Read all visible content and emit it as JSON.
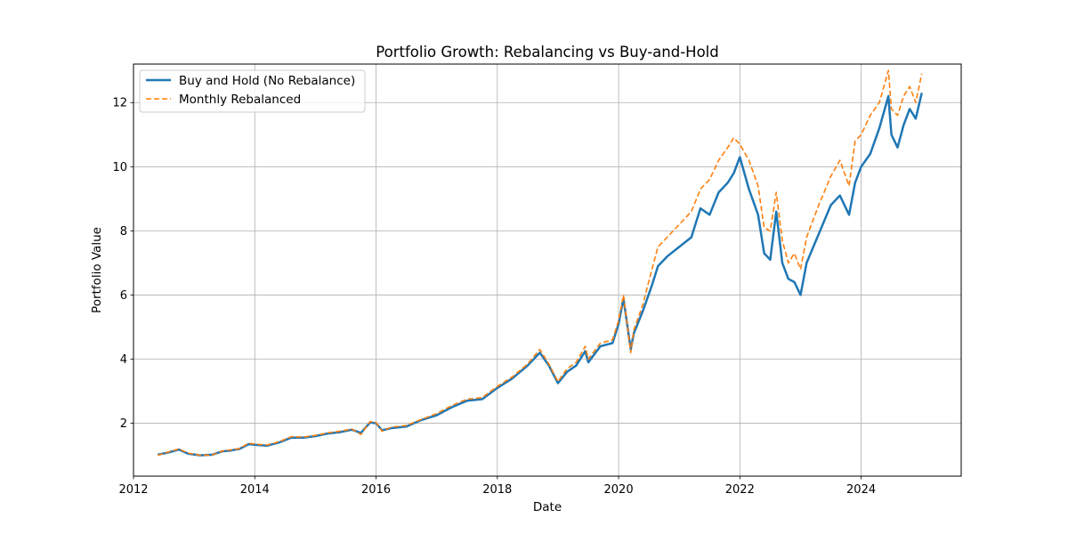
{
  "chart_data": {
    "type": "line",
    "title": "Portfolio Growth: Rebalancing vs Buy-and-Hold",
    "xlabel": "Date",
    "ylabel": "Portfolio Value",
    "xlim": [
      2012.0,
      2025.65
    ],
    "ylim": [
      0.35,
      13.2
    ],
    "grid": true,
    "legend_position": "top-left",
    "x_ticks": [
      2012,
      2014,
      2016,
      2018,
      2020,
      2022,
      2024
    ],
    "x_tick_labels": [
      "2012",
      "2014",
      "2016",
      "2018",
      "2020",
      "2022",
      "2024"
    ],
    "y_ticks": [
      2,
      4,
      6,
      8,
      10,
      12
    ],
    "y_tick_labels": [
      "2",
      "4",
      "6",
      "8",
      "10",
      "12"
    ],
    "x": [
      2012.4,
      2012.6,
      2012.75,
      2012.9,
      2013.1,
      2013.3,
      2013.45,
      2013.6,
      2013.75,
      2013.9,
      2014.0,
      2014.2,
      2014.4,
      2014.6,
      2014.8,
      2015.0,
      2015.2,
      2015.4,
      2015.6,
      2015.75,
      2015.9,
      2016.0,
      2016.1,
      2016.25,
      2016.5,
      2016.75,
      2017.0,
      2017.25,
      2017.5,
      2017.75,
      2018.0,
      2018.25,
      2018.5,
      2018.7,
      2018.85,
      2019.0,
      2019.15,
      2019.3,
      2019.45,
      2019.5,
      2019.7,
      2019.9,
      2020.0,
      2020.08,
      2020.2,
      2020.25,
      2020.4,
      2020.55,
      2020.65,
      2020.8,
      2021.0,
      2021.2,
      2021.35,
      2021.5,
      2021.65,
      2021.8,
      2021.9,
      2022.0,
      2022.15,
      2022.3,
      2022.4,
      2022.5,
      2022.6,
      2022.7,
      2022.8,
      2022.9,
      2023.0,
      2023.1,
      2023.3,
      2023.5,
      2023.65,
      2023.8,
      2023.9,
      2024.0,
      2024.15,
      2024.3,
      2024.45,
      2024.5,
      2024.6,
      2024.7,
      2024.8,
      2024.9,
      2025.0
    ],
    "series": [
      {
        "name": "Buy and Hold (No Rebalance)",
        "color": "#1f77b4",
        "style": "solid",
        "values": [
          1.02,
          1.1,
          1.18,
          1.05,
          1.0,
          1.02,
          1.12,
          1.15,
          1.2,
          1.35,
          1.33,
          1.3,
          1.4,
          1.55,
          1.55,
          1.6,
          1.68,
          1.72,
          1.8,
          1.7,
          2.02,
          2.0,
          1.78,
          1.85,
          1.9,
          2.1,
          2.25,
          2.5,
          2.7,
          2.75,
          3.1,
          3.4,
          3.8,
          4.2,
          3.8,
          3.25,
          3.6,
          3.8,
          4.25,
          3.9,
          4.4,
          4.5,
          5.1,
          5.9,
          4.3,
          4.8,
          5.5,
          6.3,
          6.9,
          7.2,
          7.5,
          7.8,
          8.7,
          8.5,
          9.2,
          9.5,
          9.8,
          10.3,
          9.3,
          8.5,
          7.3,
          7.1,
          8.6,
          7.0,
          6.5,
          6.4,
          6.0,
          7.0,
          7.9,
          8.8,
          9.1,
          8.5,
          9.5,
          10.0,
          10.4,
          11.2,
          12.2,
          11.0,
          10.6,
          11.3,
          11.8,
          11.5,
          12.3
        ]
      },
      {
        "name": "Monthly Rebalanced",
        "color": "#ff7f0e",
        "style": "dashed",
        "values": [
          1.0,
          1.12,
          1.2,
          1.07,
          1.0,
          1.01,
          1.13,
          1.17,
          1.21,
          1.38,
          1.35,
          1.32,
          1.42,
          1.58,
          1.57,
          1.62,
          1.7,
          1.75,
          1.82,
          1.65,
          2.05,
          2.02,
          1.75,
          1.88,
          1.93,
          2.12,
          2.3,
          2.55,
          2.75,
          2.8,
          3.15,
          3.45,
          3.85,
          4.3,
          3.85,
          3.3,
          3.7,
          3.9,
          4.4,
          4.0,
          4.5,
          4.6,
          5.2,
          6.0,
          4.2,
          4.9,
          5.7,
          6.8,
          7.5,
          7.8,
          8.2,
          8.6,
          9.3,
          9.6,
          10.2,
          10.6,
          10.9,
          10.7,
          10.2,
          9.4,
          8.1,
          8.0,
          9.2,
          7.7,
          7.0,
          7.3,
          6.8,
          7.8,
          8.8,
          9.7,
          10.2,
          9.4,
          10.8,
          11.0,
          11.6,
          12.0,
          13.0,
          11.8,
          11.6,
          12.2,
          12.5,
          12.0,
          12.9
        ]
      }
    ]
  }
}
